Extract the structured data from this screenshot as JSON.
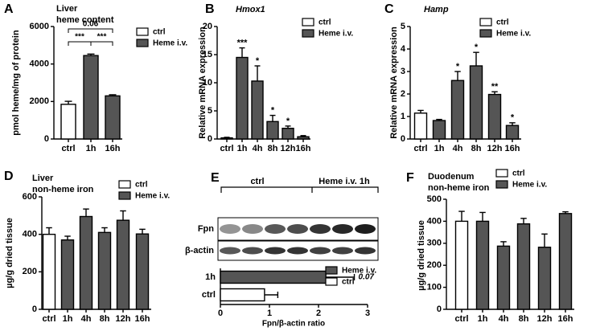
{
  "chart_data": [
    {
      "type": "bar",
      "panel": "A",
      "title": [
        "Liver",
        "heme content"
      ],
      "ylabel": "pmol heme/mg of protein",
      "categories": [
        "ctrl",
        "1h",
        "16h"
      ],
      "values": [
        1850,
        4450,
        2300
      ],
      "errors": [
        160,
        80,
        60
      ],
      "colors": [
        "#ffffff",
        "#555555",
        "#555555"
      ],
      "ylim": [
        0,
        6000
      ],
      "yticks": [
        0,
        2000,
        4000,
        6000
      ],
      "brackets": [
        {
          "from": "ctrl",
          "to": "1h",
          "label": "***"
        },
        {
          "from": "1h",
          "to": "16h",
          "label": "***"
        },
        {
          "from": "ctrl",
          "to": "16h",
          "label": "0.06"
        }
      ],
      "legend": [
        {
          "name": "ctrl",
          "color": "#ffffff"
        },
        {
          "name": "Heme i.v.",
          "color": "#555555"
        }
      ]
    },
    {
      "type": "bar",
      "panel": "B",
      "title": "Hmox1",
      "title_italic": true,
      "ylabel": "Relative mRNA expression",
      "categories": [
        "ctrl",
        "1h",
        "4h",
        "8h",
        "12h",
        "16h"
      ],
      "values": [
        0.2,
        14.5,
        10.3,
        3.1,
        1.9,
        0.4
      ],
      "errors": [
        0.1,
        1.7,
        2.7,
        1.1,
        0.4,
        0.2
      ],
      "colors": [
        "#ffffff",
        "#555555",
        "#555555",
        "#555555",
        "#555555",
        "#555555"
      ],
      "significance": [
        null,
        "***",
        "*",
        "*",
        "*",
        null
      ],
      "ylim": [
        0,
        20
      ],
      "yticks": [
        0,
        5,
        10,
        15,
        20
      ],
      "legend": [
        {
          "name": "ctrl",
          "color": "#ffffff"
        },
        {
          "name": "Heme i.v.",
          "color": "#555555"
        }
      ]
    },
    {
      "type": "bar",
      "panel": "C",
      "title": "Hamp",
      "title_italic": true,
      "ylabel": "Relative mRNA expression",
      "categories": [
        "ctrl",
        "1h",
        "4h",
        "8h",
        "12h",
        "16h"
      ],
      "values": [
        1.15,
        0.82,
        2.6,
        3.25,
        1.98,
        0.6
      ],
      "errors": [
        0.12,
        0.05,
        0.4,
        0.6,
        0.12,
        0.12
      ],
      "colors": [
        "#ffffff",
        "#555555",
        "#555555",
        "#555555",
        "#555555",
        "#555555"
      ],
      "significance": [
        null,
        null,
        "*",
        "*",
        "**",
        "*"
      ],
      "ylim": [
        0,
        5
      ],
      "yticks": [
        0,
        1,
        2,
        3,
        4,
        5
      ],
      "legend": [
        {
          "name": "ctrl",
          "color": "#ffffff"
        },
        {
          "name": "Heme i.v.",
          "color": "#555555"
        }
      ]
    },
    {
      "type": "bar",
      "panel": "D",
      "title": [
        "Liver",
        "non-heme iron"
      ],
      "ylabel": "µg/g dried tissue",
      "categories": [
        "ctrl",
        "1h",
        "4h",
        "8h",
        "12h",
        "16h"
      ],
      "values": [
        400,
        370,
        495,
        410,
        475,
        402
      ],
      "errors": [
        35,
        20,
        40,
        25,
        50,
        25
      ],
      "colors": [
        "#ffffff",
        "#555555",
        "#555555",
        "#555555",
        "#555555",
        "#555555"
      ],
      "ylim": [
        0,
        600
      ],
      "yticks": [
        0,
        200,
        400,
        600
      ],
      "legend": [
        {
          "name": "ctrl",
          "color": "#ffffff"
        },
        {
          "name": "Heme i.v.",
          "color": "#555555"
        }
      ]
    },
    {
      "type": "hbar",
      "panel": "E",
      "groups": [
        "ctrl",
        "Heme i.v. 1h"
      ],
      "blots": [
        "Fpn",
        "β-actin"
      ],
      "categories": [
        "1h",
        "ctrl"
      ],
      "values": [
        2.15,
        0.9
      ],
      "errors": [
        0.58,
        0.27
      ],
      "colors": [
        "#555555",
        "#ffffff"
      ],
      "annotation": "0.07",
      "xlabel": "Fpn/β-actin  ratio",
      "xlim": [
        0,
        3
      ],
      "xticks": [
        0,
        1,
        2,
        3
      ],
      "legend": [
        {
          "name": "Heme i.v.",
          "color": "#555555"
        },
        {
          "name": "ctrl",
          "color": "#ffffff"
        }
      ]
    },
    {
      "type": "bar",
      "panel": "F",
      "title": [
        "Duodenum",
        "non-heme iron"
      ],
      "ylabel": "µg/g dried tissue",
      "categories": [
        "ctrl",
        "1h",
        "4h",
        "8h",
        "12h",
        "16h"
      ],
      "values": [
        400,
        400,
        287,
        388,
        282,
        435
      ],
      "errors": [
        45,
        40,
        20,
        25,
        60,
        8
      ],
      "colors": [
        "#ffffff",
        "#555555",
        "#555555",
        "#555555",
        "#555555",
        "#555555"
      ],
      "ylim": [
        0,
        500
      ],
      "yticks": [
        0,
        100,
        200,
        300,
        400,
        500
      ],
      "legend": [
        {
          "name": "ctrl",
          "color": "#ffffff"
        },
        {
          "name": "Heme i.v.",
          "color": "#555555"
        }
      ]
    }
  ]
}
